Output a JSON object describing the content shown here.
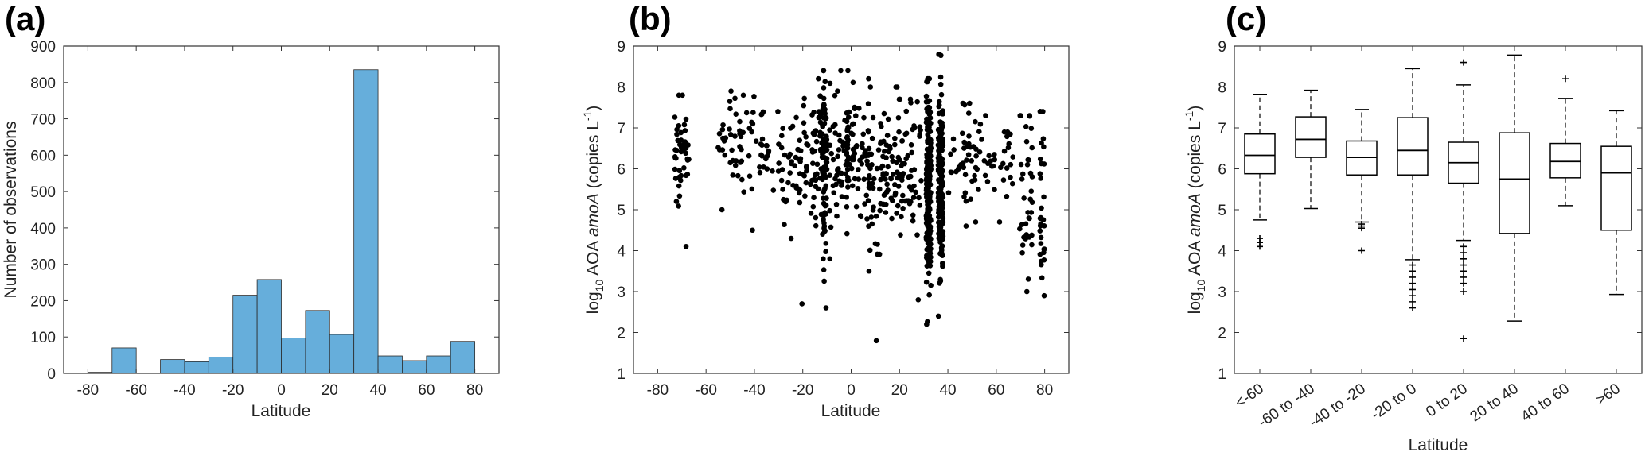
{
  "chart_data": [
    {
      "panel": "(a)",
      "type": "bar",
      "xlabel": "Latitude",
      "ylabel": "Number of observations",
      "xlim": [
        -90,
        90
      ],
      "ylim": [
        0,
        900
      ],
      "xticks": [
        -80,
        -60,
        -40,
        -20,
        0,
        20,
        40,
        60,
        80
      ],
      "yticks": [
        0,
        100,
        200,
        300,
        400,
        500,
        600,
        700,
        800,
        900
      ],
      "bin_width": 10,
      "bin_edges_start": [
        -80,
        -70,
        -50,
        -40,
        -30,
        -20,
        -10,
        0,
        10,
        20,
        30,
        40,
        50,
        60,
        70
      ],
      "values": [
        3,
        70,
        38,
        32,
        45,
        215,
        258,
        97,
        173,
        107,
        835,
        48,
        35,
        48,
        88
      ],
      "bar_color": "#66aedb"
    },
    {
      "panel": "(b)",
      "type": "scatter",
      "xlabel": "Latitude",
      "ylabel_parts": [
        "log",
        "10",
        " AOA ",
        "amoA",
        " (copies L",
        "-1",
        ")"
      ],
      "xlim": [
        -90,
        90
      ],
      "ylim": [
        1,
        9
      ],
      "xticks": [
        -80,
        -60,
        -40,
        -20,
        0,
        20,
        40,
        60,
        80
      ],
      "yticks": [
        1,
        2,
        3,
        4,
        5,
        6,
        7,
        8,
        9
      ],
      "clusters": [
        {
          "lat": -70,
          "n": 45,
          "mean": 6.4,
          "sd": 0.6,
          "ymin": 4.1,
          "ymax": 7.8,
          "spread": 3
        },
        {
          "lat": -50,
          "n": 30,
          "mean": 6.6,
          "sd": 0.5,
          "ymin": 5.0,
          "ymax": 7.9,
          "spread": 5
        },
        {
          "lat": -40,
          "n": 35,
          "mean": 6.6,
          "sd": 0.5,
          "ymin": 4.5,
          "ymax": 7.8,
          "spread": 6
        },
        {
          "lat": -27,
          "n": 35,
          "mean": 6.3,
          "sd": 0.6,
          "ymin": 4.3,
          "ymax": 7.4,
          "spread": 6
        },
        {
          "lat": -17,
          "n": 60,
          "mean": 6.1,
          "sd": 0.9,
          "ymin": 2.7,
          "ymax": 8.2,
          "spread": 5
        },
        {
          "lat": -11,
          "n": 90,
          "mean": 6.3,
          "sd": 1.0,
          "ymin": 2.6,
          "ymax": 8.4,
          "spread": 1
        },
        {
          "lat": -5,
          "n": 60,
          "mean": 6.5,
          "sd": 0.8,
          "ymin": 3.8,
          "ymax": 8.4,
          "spread": 4
        },
        {
          "lat": 3,
          "n": 60,
          "mean": 6.3,
          "sd": 0.8,
          "ymin": 3.5,
          "ymax": 8.2,
          "spread": 5
        },
        {
          "lat": 13,
          "n": 80,
          "mean": 5.8,
          "sd": 0.9,
          "ymin": 1.8,
          "ymax": 8.0,
          "spread": 6
        },
        {
          "lat": 24,
          "n": 60,
          "mean": 5.9,
          "sd": 1.0,
          "ymin": 2.8,
          "ymax": 7.7,
          "spread": 5
        },
        {
          "lat": 32,
          "n": 200,
          "mean": 5.6,
          "sd": 1.3,
          "ymin": 2.2,
          "ymax": 8.2,
          "spread": 1
        },
        {
          "lat": 37,
          "n": 160,
          "mean": 5.8,
          "sd": 1.2,
          "ymin": 2.4,
          "ymax": 8.8,
          "spread": 1
        },
        {
          "lat": 45,
          "n": 30,
          "mean": 6.2,
          "sd": 0.6,
          "ymin": 4.6,
          "ymax": 7.6,
          "spread": 5
        },
        {
          "lat": 55,
          "n": 25,
          "mean": 6.2,
          "sd": 0.6,
          "ymin": 4.7,
          "ymax": 7.3,
          "spread": 5
        },
        {
          "lat": 64,
          "n": 15,
          "mean": 6.0,
          "sd": 0.6,
          "ymin": 4.7,
          "ymax": 6.9,
          "spread": 3
        },
        {
          "lat": 72,
          "n": 35,
          "mean": 5.4,
          "sd": 1.3,
          "ymin": 3.0,
          "ymax": 7.3,
          "spread": 3
        },
        {
          "lat": 79,
          "n": 30,
          "mean": 5.1,
          "sd": 1.3,
          "ymin": 2.9,
          "ymax": 7.4,
          "spread": 1
        }
      ]
    },
    {
      "panel": "(c)",
      "type": "box",
      "xlabel": "Latitude",
      "ylabel_parts": [
        "log",
        "10",
        " AOA ",
        "amoA",
        " (copies L",
        "-1",
        ")"
      ],
      "ylim": [
        1,
        9
      ],
      "yticks": [
        1,
        2,
        3,
        4,
        5,
        6,
        7,
        8,
        9
      ],
      "categories": [
        "<-60",
        "-60 to -40",
        "-40 to -20",
        "-20 to 0",
        "0 to 20",
        "20 to 40",
        "40 to 60",
        ">60"
      ],
      "boxes": [
        {
          "whislo": 4.75,
          "q1": 5.88,
          "med": 6.33,
          "q3": 6.85,
          "whishi": 7.82,
          "fliers": [
            4.1,
            4.2,
            4.3
          ]
        },
        {
          "whislo": 5.03,
          "q1": 6.28,
          "med": 6.72,
          "q3": 7.27,
          "whishi": 7.92,
          "fliers": []
        },
        {
          "whislo": 4.7,
          "q1": 5.85,
          "med": 6.28,
          "q3": 6.68,
          "whishi": 7.45,
          "fliers": [
            4.0,
            4.55,
            4.6,
            4.65
          ]
        },
        {
          "whislo": 3.78,
          "q1": 5.85,
          "med": 6.45,
          "q3": 7.25,
          "whishi": 8.45,
          "fliers": [
            2.6,
            2.75,
            2.9,
            3.05,
            3.2,
            3.35,
            3.5,
            3.65
          ]
        },
        {
          "whislo": 4.25,
          "q1": 5.65,
          "med": 6.15,
          "q3": 6.65,
          "whishi": 8.05,
          "fliers": [
            1.85,
            3.0,
            3.2,
            3.35,
            3.5,
            3.65,
            3.8,
            3.95,
            4.1,
            8.6
          ]
        },
        {
          "whislo": 2.28,
          "q1": 4.42,
          "med": 5.75,
          "q3": 6.88,
          "whishi": 8.78,
          "fliers": []
        },
        {
          "whislo": 5.1,
          "q1": 5.78,
          "med": 6.18,
          "q3": 6.62,
          "whishi": 7.72,
          "fliers": [
            8.2
          ]
        },
        {
          "whislo": 2.93,
          "q1": 4.5,
          "med": 5.9,
          "q3": 6.55,
          "whishi": 7.42,
          "fliers": []
        }
      ]
    }
  ]
}
